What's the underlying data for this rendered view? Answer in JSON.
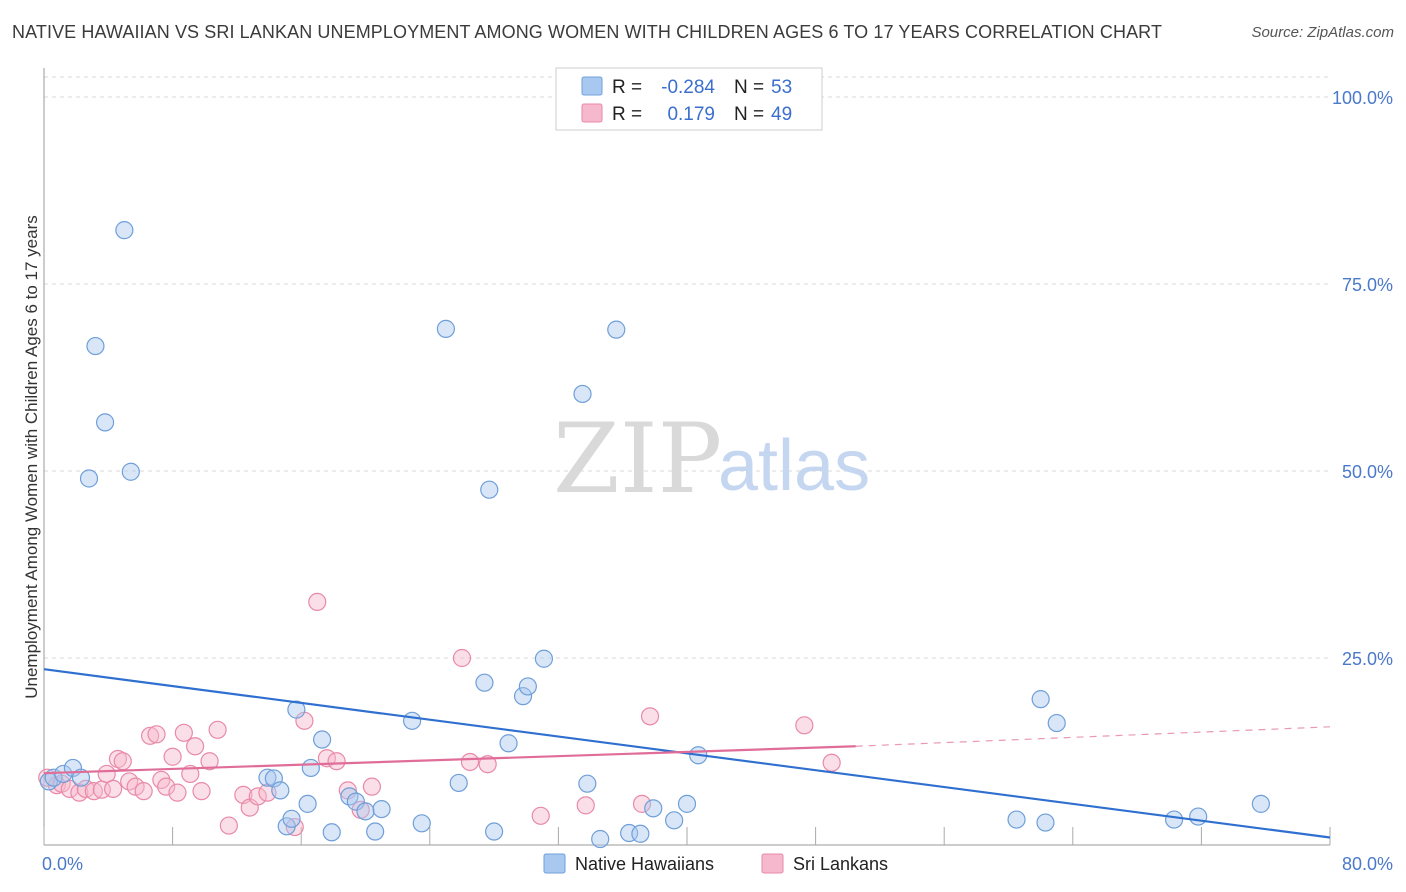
{
  "title": "NATIVE HAWAIIAN VS SRI LANKAN UNEMPLOYMENT AMONG WOMEN WITH CHILDREN AGES 6 TO 17 YEARS CORRELATION CHART",
  "source": "Source: ZipAtlas.com",
  "watermark": {
    "zip": "ZIP",
    "atlas": "atlas"
  },
  "legend": {
    "rows": [
      {
        "r_label": "R =",
        "r_value": "-0.284",
        "n_label": "N =",
        "n_value": "53"
      },
      {
        "r_label": "R =",
        "r_value": "0.179",
        "n_label": "N =",
        "n_value": "49"
      }
    ]
  },
  "colors": {
    "blue_fill": "#a9c8f0",
    "blue_stroke": "#6f9fd8",
    "blue_line": "#2f6fcf",
    "pink_fill": "#f6b8cc",
    "pink_stroke": "#e88aa8",
    "pink_line": "#e06d98",
    "grid": "#d9d9d9",
    "tick_text": "#4a79c9"
  },
  "chart_data": {
    "type": "scatter",
    "title": "NATIVE HAWAIIAN VS SRI LANKAN UNEMPLOYMENT AMONG WOMEN WITH CHILDREN AGES 6 TO 17 YEARS CORRELATION CHART",
    "xlabel": "",
    "ylabel": "Unemployment Among Women with Children Ages 6 to 17 years",
    "xlim": [
      0,
      80
    ],
    "ylim": [
      0,
      100
    ],
    "x_tick_labels": [
      "0.0%",
      "80.0%"
    ],
    "y_ticks": [
      25,
      50,
      75,
      100
    ],
    "y_tick_labels": [
      "25.0%",
      "50.0%",
      "75.0%",
      "100.0%"
    ],
    "legend_position": "top-center",
    "series": [
      {
        "name": "Native Hawaiians",
        "color": "blue",
        "points": [
          [
            0.3,
            8.5
          ],
          [
            0.6,
            9.0
          ],
          [
            1.2,
            9.5
          ],
          [
            1.8,
            10.3
          ],
          [
            2.3,
            9.0
          ],
          [
            2.8,
            49.0
          ],
          [
            3.2,
            66.7
          ],
          [
            3.8,
            56.5
          ],
          [
            5.0,
            82.2
          ],
          [
            5.4,
            49.9
          ],
          [
            13.9,
            9.0
          ],
          [
            14.3,
            8.9
          ],
          [
            14.7,
            7.3
          ],
          [
            15.1,
            2.5
          ],
          [
            15.4,
            3.5
          ],
          [
            15.7,
            18.1
          ],
          [
            16.4,
            5.5
          ],
          [
            16.6,
            10.3
          ],
          [
            17.3,
            14.1
          ],
          [
            17.9,
            1.7
          ],
          [
            19.0,
            6.5
          ],
          [
            19.4,
            5.8
          ],
          [
            20.0,
            4.5
          ],
          [
            20.6,
            1.8
          ],
          [
            21.0,
            4.8
          ],
          [
            22.9,
            16.6
          ],
          [
            23.5,
            2.9
          ],
          [
            25.8,
            8.3
          ],
          [
            27.4,
            21.7
          ],
          [
            28.0,
            1.8
          ],
          [
            27.7,
            47.5
          ],
          [
            28.9,
            13.6
          ],
          [
            29.8,
            19.9
          ],
          [
            30.1,
            21.2
          ],
          [
            31.1,
            24.9
          ],
          [
            33.5,
            60.3
          ],
          [
            33.8,
            8.2
          ],
          [
            34.6,
            0.8
          ],
          [
            36.4,
            1.6
          ],
          [
            37.1,
            1.5
          ],
          [
            37.9,
            4.9
          ],
          [
            35.6,
            68.9
          ],
          [
            39.2,
            3.3
          ],
          [
            40.0,
            5.5
          ],
          [
            40.7,
            12.0
          ],
          [
            25.0,
            69.0
          ],
          [
            60.5,
            3.4
          ],
          [
            62.3,
            3.0
          ],
          [
            63.0,
            16.3
          ],
          [
            62.0,
            19.5
          ],
          [
            70.3,
            3.4
          ],
          [
            71.8,
            3.8
          ],
          [
            75.7,
            5.5
          ]
        ]
      },
      {
        "name": "Sri Lankans",
        "color": "pink",
        "points": [
          [
            0.2,
            9.0
          ],
          [
            0.8,
            8.0
          ],
          [
            1.1,
            8.2
          ],
          [
            1.6,
            7.5
          ],
          [
            2.2,
            7.0
          ],
          [
            2.6,
            7.5
          ],
          [
            3.1,
            7.2
          ],
          [
            3.6,
            7.4
          ],
          [
            3.9,
            9.5
          ],
          [
            4.3,
            7.5
          ],
          [
            4.6,
            11.5
          ],
          [
            4.9,
            11.2
          ],
          [
            5.3,
            8.5
          ],
          [
            5.7,
            7.8
          ],
          [
            6.2,
            7.2
          ],
          [
            6.6,
            14.6
          ],
          [
            7.0,
            14.8
          ],
          [
            7.3,
            8.7
          ],
          [
            7.6,
            7.8
          ],
          [
            8.0,
            11.8
          ],
          [
            8.3,
            7.0
          ],
          [
            8.7,
            15.0
          ],
          [
            9.1,
            9.5
          ],
          [
            9.4,
            13.2
          ],
          [
            9.8,
            7.2
          ],
          [
            10.3,
            11.2
          ],
          [
            10.8,
            15.4
          ],
          [
            11.5,
            2.6
          ],
          [
            12.4,
            6.7
          ],
          [
            12.8,
            5.0
          ],
          [
            13.3,
            6.5
          ],
          [
            13.9,
            7.0
          ],
          [
            15.6,
            2.4
          ],
          [
            16.2,
            16.6
          ],
          [
            17.0,
            32.5
          ],
          [
            17.6,
            11.6
          ],
          [
            18.2,
            11.2
          ],
          [
            18.9,
            7.3
          ],
          [
            19.7,
            4.7
          ],
          [
            20.4,
            7.8
          ],
          [
            26.0,
            25.0
          ],
          [
            26.5,
            11.1
          ],
          [
            27.6,
            10.8
          ],
          [
            30.9,
            3.9
          ],
          [
            33.7,
            5.3
          ],
          [
            37.2,
            5.5
          ],
          [
            37.7,
            17.2
          ],
          [
            47.3,
            16.0
          ],
          [
            49.0,
            11.0
          ]
        ]
      }
    ],
    "trendlines": [
      {
        "series": "Native Hawaiians",
        "from": [
          0,
          23.5
        ],
        "to": [
          80,
          1.0
        ],
        "style": "solid"
      },
      {
        "series": "Sri Lankans",
        "from": [
          0,
          9.6
        ],
        "to": [
          50.5,
          13.2
        ],
        "style": "solid"
      },
      {
        "series": "Sri Lankans",
        "from": [
          50.5,
          13.2
        ],
        "to": [
          80,
          15.8
        ],
        "style": "dashed"
      }
    ]
  },
  "bottom_legend": {
    "items": [
      {
        "label": "Native Hawaiians"
      },
      {
        "label": "Sri Lankans"
      }
    ]
  }
}
